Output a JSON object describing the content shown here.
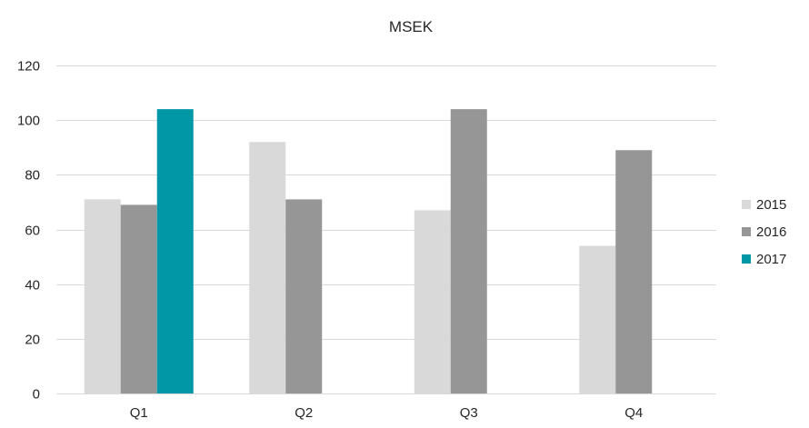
{
  "chart_data": {
    "type": "bar",
    "title": "MSEK",
    "xlabel": "",
    "ylabel": "",
    "categories": [
      "Q1",
      "Q2",
      "Q3",
      "Q4"
    ],
    "ylim": [
      0,
      120
    ],
    "yticks": [
      0,
      20,
      40,
      60,
      80,
      100,
      120
    ],
    "grid": true,
    "legend": "right",
    "series": [
      {
        "name": "2015",
        "color": "#d9d9d9",
        "values": [
          71,
          92,
          67,
          54
        ]
      },
      {
        "name": "2016",
        "color": "#969696",
        "values": [
          69,
          71,
          104,
          89
        ]
      },
      {
        "name": "2017",
        "color": "#0097a7",
        "values": [
          104,
          null,
          null,
          null
        ]
      }
    ]
  }
}
